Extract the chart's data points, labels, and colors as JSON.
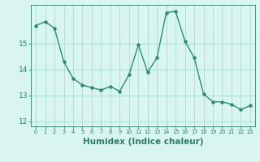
{
  "x": [
    0,
    1,
    2,
    3,
    4,
    5,
    6,
    7,
    8,
    9,
    10,
    11,
    12,
    13,
    14,
    15,
    16,
    17,
    18,
    19,
    20,
    21,
    22,
    23
  ],
  "y": [
    15.7,
    15.85,
    15.6,
    14.3,
    13.65,
    13.4,
    13.3,
    13.2,
    13.35,
    13.15,
    13.8,
    14.95,
    13.9,
    14.45,
    16.2,
    16.25,
    15.1,
    14.45,
    13.05,
    12.75,
    12.75,
    12.65,
    12.45,
    12.6
  ],
  "line_color": "#2e8b73",
  "marker": "o",
  "marker_size": 2.2,
  "linewidth": 1.0,
  "bg_color": "#d8f5f0",
  "grid_color": "#aed9d4",
  "tick_color": "#2e7b6a",
  "xlabel": "Humidex (Indice chaleur)",
  "xlabel_fontsize": 7.5,
  "xlim": [
    -0.5,
    23.5
  ],
  "ylim": [
    11.8,
    16.5
  ],
  "yticks": [
    12,
    13,
    14,
    15
  ],
  "xtick_labels": [
    "0",
    "1",
    "2",
    "3",
    "4",
    "5",
    "6",
    "7",
    "8",
    "9",
    "10",
    "11",
    "12",
    "13",
    "14",
    "15",
    "16",
    "17",
    "18",
    "19",
    "20",
    "21",
    "22",
    "23"
  ]
}
